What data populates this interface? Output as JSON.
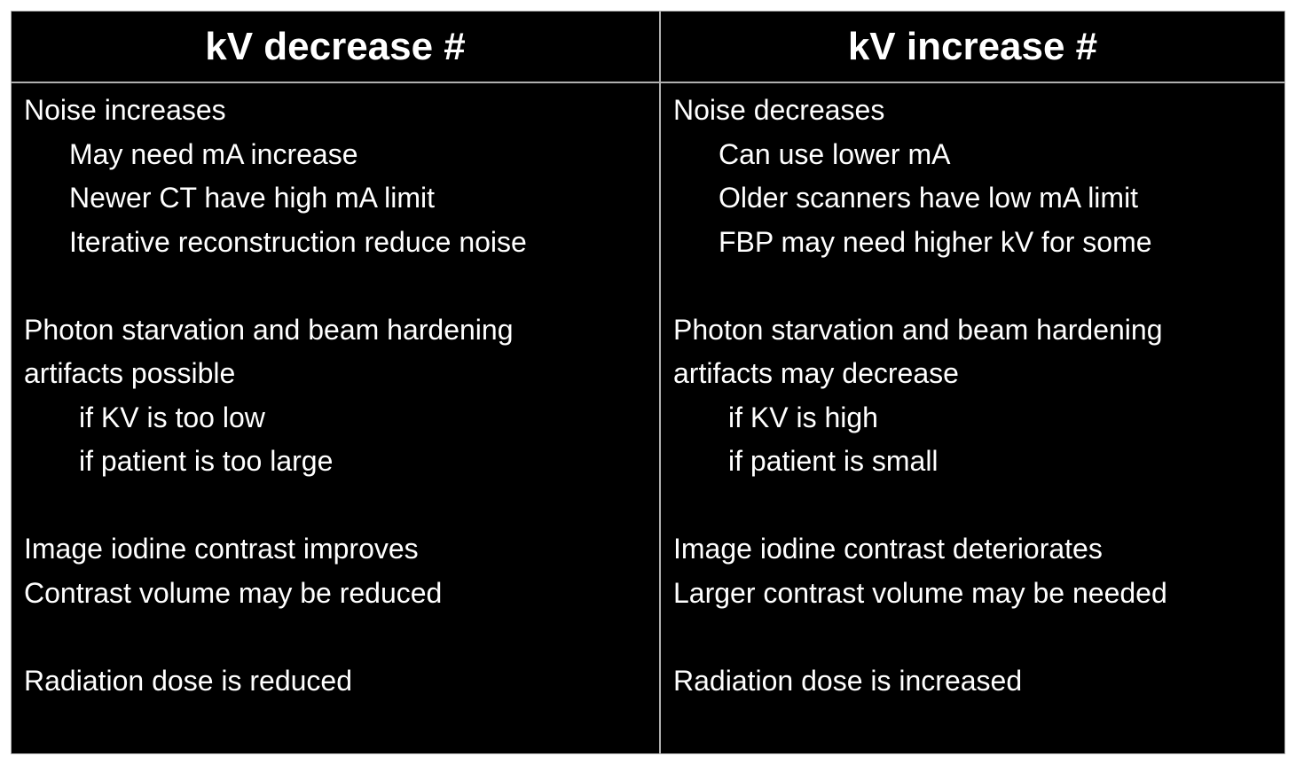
{
  "left": {
    "title": "kV decrease #",
    "lines": [
      {
        "text": "Noise increases",
        "level": 0
      },
      {
        "text": "May need mA increase",
        "level": 1
      },
      {
        "text": "Newer CT have high mA limit",
        "level": 1
      },
      {
        "text": "Iterative reconstruction reduce noise",
        "level": 1
      },
      {
        "text": "",
        "level": 0
      },
      {
        "text": "Photon starvation and beam hardening",
        "level": 0
      },
      {
        "text": "artifacts possible",
        "level": 0
      },
      {
        "text": "if KV is too low",
        "level": 2
      },
      {
        "text": "if patient is too large",
        "level": 2
      },
      {
        "text": "",
        "level": 0
      },
      {
        "text": "Image iodine contrast improves",
        "level": 0
      },
      {
        "text": "Contrast volume may be reduced",
        "level": 0
      },
      {
        "text": "",
        "level": 0
      },
      {
        "text": "Radiation dose is reduced",
        "level": 0
      }
    ]
  },
  "right": {
    "title": "kV increase #",
    "lines": [
      {
        "text": "Noise decreases",
        "level": 0
      },
      {
        "text": "Can use lower mA",
        "level": 1
      },
      {
        "text": "Older scanners have low mA limit",
        "level": 1
      },
      {
        "text": "FBP may need higher kV for some",
        "level": 1
      },
      {
        "text": "",
        "level": 0
      },
      {
        "text": "Photon starvation and beam hardening",
        "level": 0
      },
      {
        "text": "artifacts may decrease",
        "level": 0
      },
      {
        "text": "if KV is high",
        "level": 2
      },
      {
        "text": "if patient is small",
        "level": 2
      },
      {
        "text": "",
        "level": 0
      },
      {
        "text": "Image iodine contrast deteriorates",
        "level": 0
      },
      {
        "text": "Larger contrast volume may be needed",
        "level": 0
      },
      {
        "text": "",
        "level": 0
      },
      {
        "text": "Radiation dose is increased",
        "level": 0
      }
    ]
  }
}
